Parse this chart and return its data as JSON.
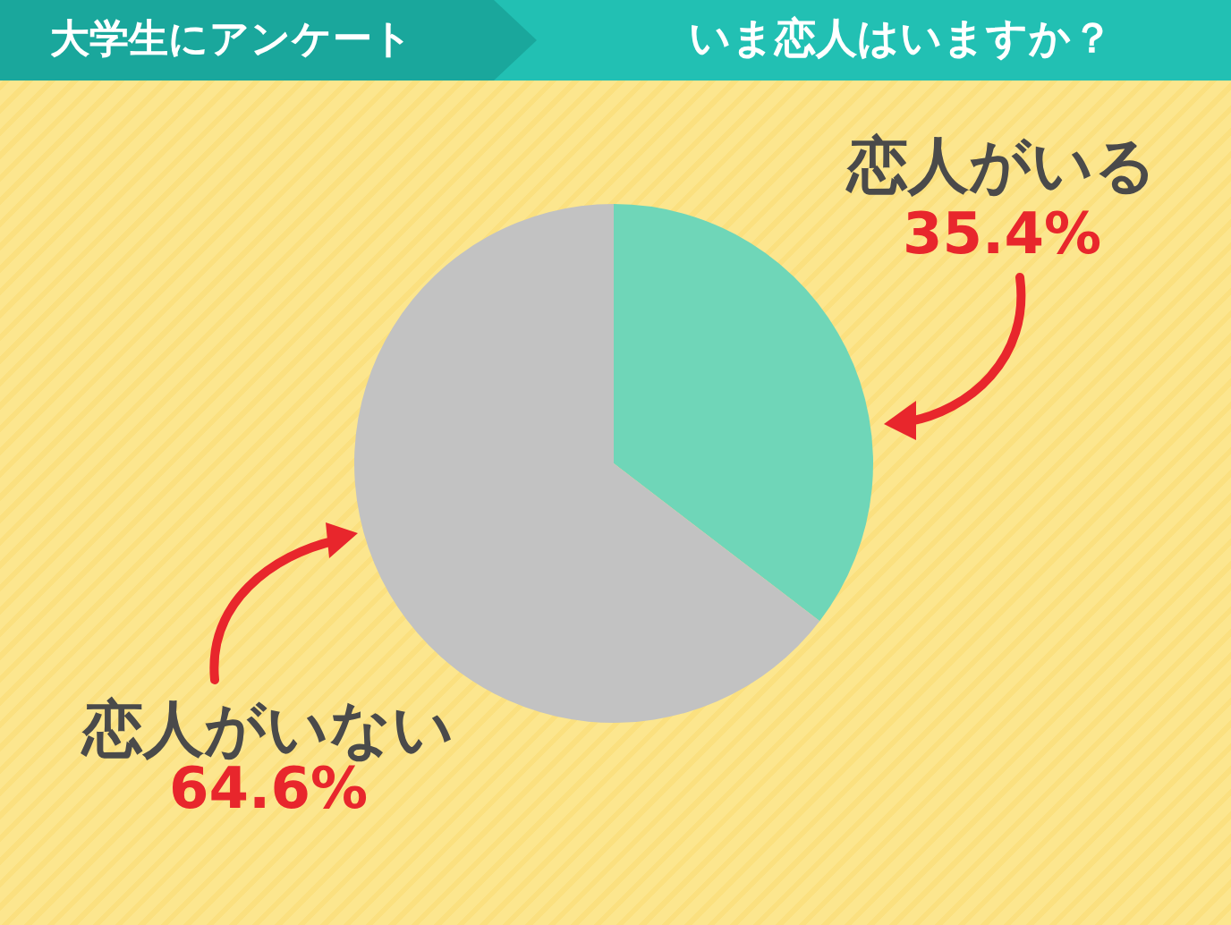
{
  "chart_data": {
    "type": "pie",
    "title": "いま恋人はいますか？",
    "subtitle": "大学生にアンケート",
    "categories": [
      "恋人がいる",
      "恋人がいない"
    ],
    "values": [
      35.4,
      64.6
    ],
    "colors": [
      "#6fd6b8",
      "#c2c2c2"
    ],
    "value_labels": [
      "35.4%",
      "64.6%"
    ],
    "legend": false
  }
}
